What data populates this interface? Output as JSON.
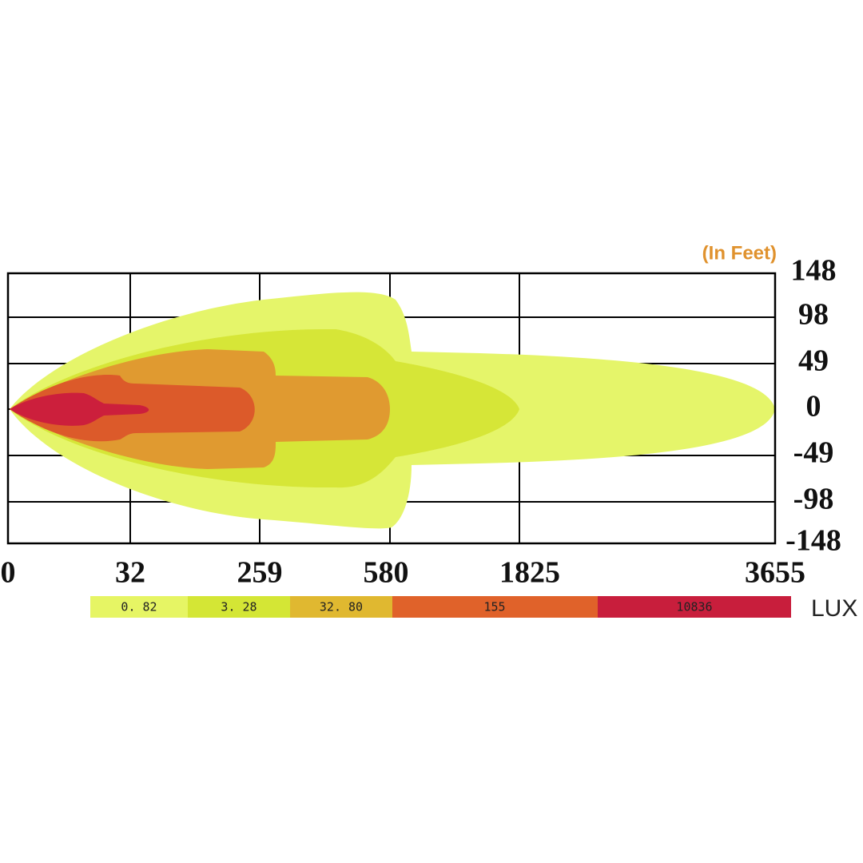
{
  "unit_label": "(In Feet)",
  "x_labels": [
    "0",
    "32",
    "259",
    "580",
    "1825",
    "3655"
  ],
  "y_labels": [
    "148",
    "98",
    "49",
    "0",
    "-49",
    "-98",
    "-148"
  ],
  "legend": {
    "items": [
      "0. 82",
      "3. 28",
      "32. 80",
      "155",
      "10836"
    ],
    "unit": "LUX"
  }
}
